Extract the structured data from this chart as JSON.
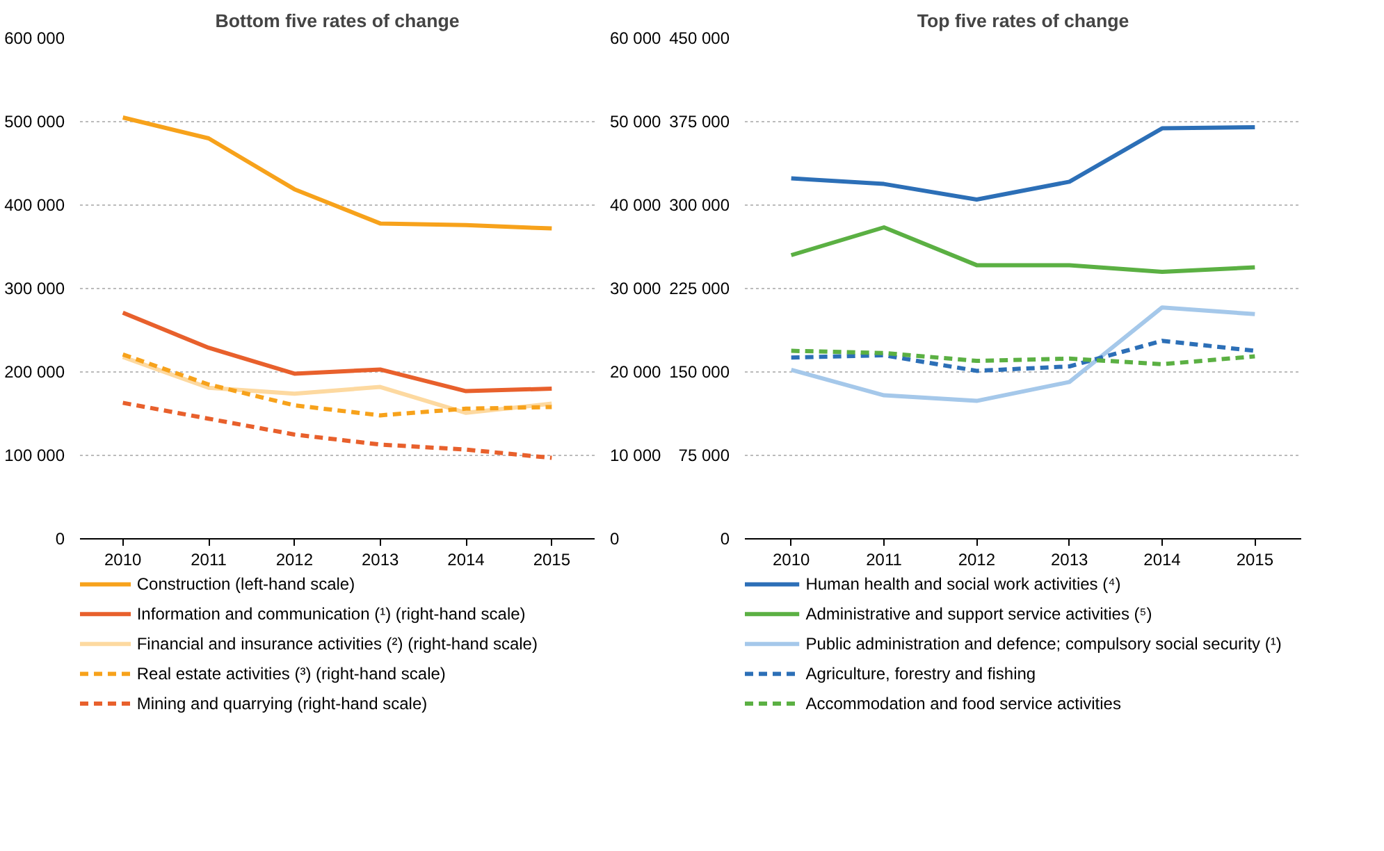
{
  "chart_data": [
    {
      "type": "line",
      "title": "Bottom five rates of change",
      "categories": [
        "2010",
        "2011",
        "2012",
        "2013",
        "2014",
        "2015"
      ],
      "ylim": [
        0,
        600000
      ],
      "yticks": [
        {
          "value": 0,
          "label": "0"
        },
        {
          "value": 100000,
          "label": "100 000"
        },
        {
          "value": 200000,
          "label": "200 000"
        },
        {
          "value": 300000,
          "label": "300 000"
        },
        {
          "value": 400000,
          "label": "400 000"
        },
        {
          "value": 500000,
          "label": "500 000"
        },
        {
          "value": 600000,
          "label": "600 000"
        }
      ],
      "y2lim": [
        0,
        60000
      ],
      "y2ticks": [
        {
          "value": 0,
          "label": "0"
        },
        {
          "value": 10000,
          "label": "10 000"
        },
        {
          "value": 20000,
          "label": "20 000"
        },
        {
          "value": 30000,
          "label": "30 000"
        },
        {
          "value": 40000,
          "label": "40 000"
        },
        {
          "value": 50000,
          "label": "50 000"
        },
        {
          "value": 60000,
          "label": "60 000"
        }
      ],
      "grid": "y",
      "legend": "bottom",
      "series": [
        {
          "name": "Construction (left-hand scale)",
          "color": "#f7a21b",
          "line_style": "solid",
          "values": [
            505000,
            480000,
            419000,
            378000,
            376000,
            372000
          ]
        },
        {
          "name": "Information and communication (¹) (right-hand scale)",
          "color": "#e8602c",
          "line_style": "solid",
          "axis": "y2",
          "values": [
            27100,
            22900,
            19800,
            20300,
            17700,
            18000
          ]
        },
        {
          "name": "Financial and insurance activities (²) (right-hand scale)",
          "color": "#fdd9a0",
          "line_style": "solid",
          "axis": "y2",
          "values": [
            21800,
            18100,
            17400,
            18200,
            15100,
            16200
          ]
        },
        {
          "name": "Real estate activities (³) (right-hand scale)",
          "color": "#f7a21b",
          "line_style": "dashed",
          "axis": "y2",
          "values": [
            22100,
            18500,
            16000,
            14800,
            15600,
            15800
          ]
        },
        {
          "name": "Mining and quarrying (right-hand scale)",
          "color": "#e8602c",
          "line_style": "dashed",
          "axis": "y2",
          "values": [
            16300,
            14400,
            12500,
            11300,
            10700,
            9700
          ]
        }
      ]
    },
    {
      "type": "line",
      "title": "Top five rates of change",
      "categories": [
        "2010",
        "2011",
        "2012",
        "2013",
        "2014",
        "2015"
      ],
      "ylim": [
        0,
        450000
      ],
      "yticks": [
        {
          "value": 0,
          "label": "0"
        },
        {
          "value": 75000,
          "label": "75 000"
        },
        {
          "value": 150000,
          "label": "150 000"
        },
        {
          "value": 225000,
          "label": "225 000"
        },
        {
          "value": 300000,
          "label": "300 000"
        },
        {
          "value": 375000,
          "label": "375 000"
        },
        {
          "value": 450000,
          "label": "450 000"
        }
      ],
      "grid": "y",
      "legend": "bottom",
      "series": [
        {
          "name": "Human health and social work activities (⁴)",
          "color": "#2c6fb7",
          "line_style": "solid",
          "values": [
            324000,
            319000,
            305000,
            321000,
            369000,
            370000
          ]
        },
        {
          "name": "Administrative and support service activities (⁵)",
          "color": "#5bb043",
          "line_style": "solid",
          "values": [
            255000,
            280000,
            246000,
            246000,
            240000,
            244000
          ]
        },
        {
          "name": "Public administration and defence; compulsory social security (¹)",
          "color": "#a5c8ea",
          "line_style": "solid",
          "values": [
            152000,
            129000,
            124000,
            141000,
            208000,
            202000
          ]
        },
        {
          "name": "Agriculture, forestry and fishing",
          "color": "#2c6fb7",
          "line_style": "dashed",
          "values": [
            163000,
            165000,
            151000,
            155000,
            178000,
            169000
          ]
        },
        {
          "name": "Accommodation and food service activities",
          "color": "#5bb043",
          "line_style": "dashed",
          "values": [
            169000,
            167000,
            160000,
            162000,
            157000,
            164000
          ]
        }
      ]
    }
  ]
}
